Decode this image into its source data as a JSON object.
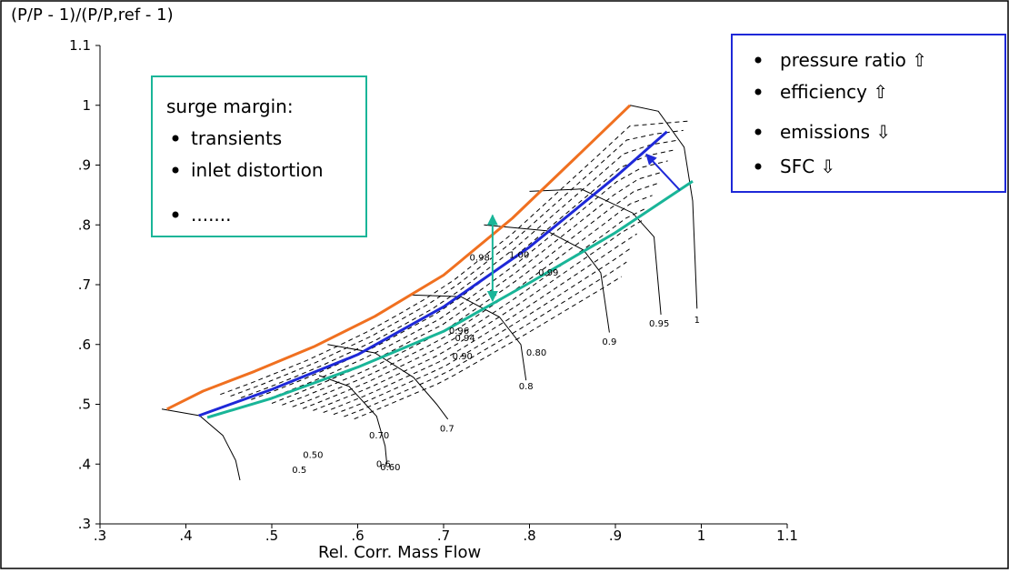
{
  "chart_data": {
    "type": "line",
    "title": "",
    "ylabel": "(P/P - 1)/(P/P,ref - 1)",
    "xlabel": "Rel. Corr. Mass Flow",
    "xlim": [
      0.3,
      1.1
    ],
    "ylim": [
      0.3,
      1.1
    ],
    "x_ticks": [
      0.3,
      0.4,
      0.5,
      0.6,
      0.7,
      0.8,
      0.9,
      1.0,
      1.1
    ],
    "x_tick_labels": [
      ".3",
      ".4",
      ".5",
      ".6",
      ".7",
      ".8",
      ".9",
      "1",
      "1.1"
    ],
    "y_ticks": [
      0.3,
      0.4,
      0.5,
      0.6,
      0.7,
      0.8,
      0.9,
      1.0,
      1.1
    ],
    "y_tick_labels": [
      ".3",
      ".4",
      ".5",
      ".6",
      ".7",
      ".8",
      ".9",
      "1",
      "1.1"
    ],
    "grid": false,
    "colors": {
      "surge_line": "#f07020",
      "operating_line_high": "#1e28d8",
      "operating_line_low": "#19b598",
      "map_lines": "#000000"
    },
    "series": [
      {
        "key": "surge_line",
        "x": [
          0.378,
          0.42,
          0.48,
          0.55,
          0.62,
          0.7,
          0.78,
          0.86,
          0.917
        ],
        "y": [
          0.492,
          0.522,
          0.555,
          0.597,
          0.647,
          0.716,
          0.811,
          0.921,
          1.0
        ]
      },
      {
        "key": "operating_line_high",
        "x": [
          0.415,
          0.5,
          0.6,
          0.7,
          0.8,
          0.9,
          0.96
        ],
        "y": [
          0.481,
          0.525,
          0.583,
          0.663,
          0.763,
          0.88,
          0.956
        ]
      },
      {
        "key": "operating_line_low",
        "x": [
          0.425,
          0.5,
          0.6,
          0.7,
          0.8,
          0.9,
          0.99
        ],
        "y": [
          0.478,
          0.51,
          0.562,
          0.622,
          0.703,
          0.787,
          0.873
        ]
      }
    ],
    "speed_lines": [
      {
        "x": [
          0.372,
          0.416,
          0.443,
          0.458,
          0.463
        ],
        "y": [
          0.492,
          0.481,
          0.448,
          0.406,
          0.373
        ]
      },
      {
        "x": [
          0.555,
          0.59,
          0.622,
          0.632,
          0.634
        ],
        "y": [
          0.548,
          0.53,
          0.48,
          0.43,
          0.4
        ]
      },
      {
        "x": [
          0.565,
          0.62,
          0.665,
          0.692,
          0.705
        ],
        "y": [
          0.6,
          0.586,
          0.545,
          0.5,
          0.475
        ]
      },
      {
        "x": [
          0.66,
          0.72,
          0.765,
          0.79,
          0.796
        ],
        "y": [
          0.683,
          0.68,
          0.646,
          0.6,
          0.54
        ]
      },
      {
        "x": [
          0.747,
          0.82,
          0.863,
          0.883,
          0.893
        ],
        "y": [
          0.8,
          0.79,
          0.758,
          0.72,
          0.62
        ]
      },
      {
        "x": [
          0.8,
          0.86,
          0.92,
          0.945,
          0.953
        ],
        "y": [
          0.856,
          0.86,
          0.82,
          0.78,
          0.65
        ]
      },
      {
        "x": [
          0.917,
          0.95,
          0.98,
          0.99,
          0.995
        ],
        "y": [
          1.0,
          0.99,
          0.93,
          0.84,
          0.66
        ]
      }
    ],
    "labels": {
      "speed": [
        {
          "text": "0.5",
          "x": 0.532,
          "y": 0.385
        },
        {
          "text": "0.6",
          "x": 0.63,
          "y": 0.395
        },
        {
          "text": "0.7",
          "x": 0.704,
          "y": 0.454
        },
        {
          "text": "0.8",
          "x": 0.796,
          "y": 0.525
        },
        {
          "text": "0.9",
          "x": 0.893,
          "y": 0.6
        },
        {
          "text": "0.95",
          "x": 0.951,
          "y": 0.63
        },
        {
          "text": "1",
          "x": 0.995,
          "y": 0.636
        }
      ],
      "efficiency": [
        {
          "text": "0.50",
          "x": 0.548,
          "y": 0.41
        },
        {
          "text": "0.60",
          "x": 0.638,
          "y": 0.39
        },
        {
          "text": "0.70",
          "x": 0.625,
          "y": 0.443
        },
        {
          "text": "0.80",
          "x": 0.808,
          "y": 0.581
        },
        {
          "text": "0.90",
          "x": 0.722,
          "y": 0.575
        },
        {
          "text": "0.94",
          "x": 0.725,
          "y": 0.606
        },
        {
          "text": "0.96",
          "x": 0.718,
          "y": 0.618
        },
        {
          "text": "0.98",
          "x": 0.742,
          "y": 0.74
        },
        {
          "text": "1.00",
          "x": 0.788,
          "y": 0.745
        },
        {
          "text": "0.99",
          "x": 0.822,
          "y": 0.715
        }
      ]
    },
    "annotations": {
      "surge_margin_arrow": {
        "x": 0.757,
        "y1": 0.816,
        "y2": 0.673
      },
      "operating_shift_arrow": {
        "x1": 0.975,
        "y1": 0.858,
        "x2": 0.936,
        "y2": 0.918
      }
    },
    "boxes": {
      "left": {
        "title": "surge margin:",
        "items": [
          "transients",
          "inlet distortion",
          "......."
        ]
      },
      "right": {
        "items": [
          "pressure ratio ⇧",
          "efficiency ⇧",
          "emissions ⇩",
          "SFC ⇩"
        ]
      }
    }
  }
}
